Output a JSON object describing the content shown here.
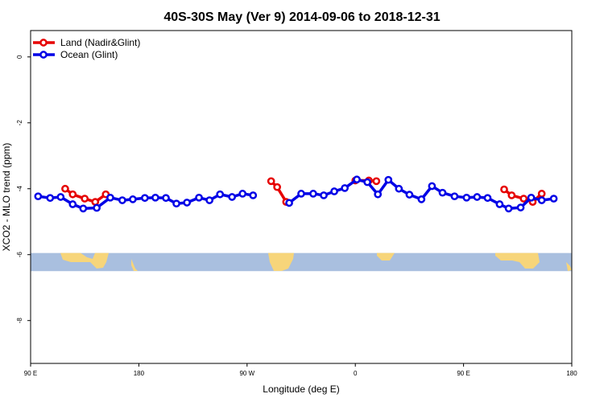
{
  "chart_data": {
    "type": "line",
    "title": "40S-30S May (Ver 9)   2014-09-06 to 2018-12-31",
    "xlabel": "Longitude (deg E)",
    "ylabel": "XCO2 - MLO trend (ppm)",
    "xlim": [
      90,
      450
    ],
    "ylim": [
      -9.3,
      0.8
    ],
    "x_ticks": [
      {
        "value": 90,
        "label": "90 E"
      },
      {
        "value": 162,
        "label": "180"
      },
      {
        "value": 234,
        "label": "90 W"
      },
      {
        "value": 306,
        "label": "0"
      },
      {
        "value": 378,
        "label": "90 E"
      },
      {
        "value": 450,
        "label": "180"
      }
    ],
    "y_ticks": [
      {
        "value": 0,
        "label": "0"
      },
      {
        "value": -2,
        "label": "-2"
      },
      {
        "value": -4,
        "label": "-4"
      },
      {
        "value": -6,
        "label": "-6"
      },
      {
        "value": -8,
        "label": "-8"
      }
    ],
    "grid": false,
    "legend_position": "top-left",
    "map_strip": {
      "y_range": [
        -6.5,
        -5.95
      ],
      "ocean_color": "#a9bfdf",
      "land_color": "#f7d57a"
    },
    "series": [
      {
        "name": "Land (Nadir&Glint)",
        "color": "#e60000",
        "segments": [
          [
            [
              113,
              -4.0
            ],
            [
              118,
              -4.17
            ],
            [
              126,
              -4.3
            ],
            [
              133,
              -4.4
            ],
            [
              140,
              -4.17
            ]
          ],
          [
            [
              250,
              -3.77
            ],
            [
              254,
              -3.95
            ],
            [
              260,
              -4.4
            ]
          ],
          [
            [
              306,
              -3.75
            ],
            [
              315,
              -3.75
            ],
            [
              320,
              -3.77
            ]
          ],
          [
            [
              405,
              -4.02
            ],
            [
              410,
              -4.2
            ],
            [
              418,
              -4.3
            ],
            [
              424,
              -4.4
            ],
            [
              430,
              -4.15
            ]
          ]
        ]
      },
      {
        "name": "Ocean (Glint)",
        "color": "#0000e6",
        "segments": [
          [
            [
              95,
              -4.23
            ],
            [
              103,
              -4.28
            ],
            [
              110,
              -4.25
            ],
            [
              118,
              -4.47
            ],
            [
              125,
              -4.6
            ],
            [
              134,
              -4.58
            ],
            [
              143,
              -4.27
            ],
            [
              151,
              -4.35
            ],
            [
              158,
              -4.32
            ],
            [
              166,
              -4.28
            ],
            [
              173,
              -4.27
            ],
            [
              180,
              -4.28
            ],
            [
              187,
              -4.45
            ],
            [
              194,
              -4.42
            ],
            [
              202,
              -4.27
            ],
            [
              209,
              -4.35
            ],
            [
              216,
              -4.17
            ],
            [
              224,
              -4.25
            ],
            [
              231,
              -4.15
            ],
            [
              238,
              -4.2
            ]
          ],
          [
            [
              262,
              -4.43
            ],
            [
              270,
              -4.15
            ],
            [
              278,
              -4.15
            ],
            [
              285,
              -4.2
            ],
            [
              292,
              -4.08
            ],
            [
              299,
              -3.98
            ],
            [
              307,
              -3.72
            ],
            [
              314,
              -3.8
            ],
            [
              321,
              -4.17
            ],
            [
              328,
              -3.73
            ],
            [
              335,
              -4.0
            ],
            [
              342,
              -4.18
            ],
            [
              350,
              -4.32
            ],
            [
              357,
              -3.92
            ],
            [
              364,
              -4.12
            ],
            [
              372,
              -4.23
            ],
            [
              380,
              -4.27
            ],
            [
              387,
              -4.25
            ],
            [
              394,
              -4.28
            ],
            [
              402,
              -4.47
            ],
            [
              408,
              -4.6
            ],
            [
              416,
              -4.57
            ],
            [
              423,
              -4.27
            ],
            [
              430,
              -4.35
            ],
            [
              438,
              -4.3
            ]
          ]
        ]
      }
    ]
  }
}
